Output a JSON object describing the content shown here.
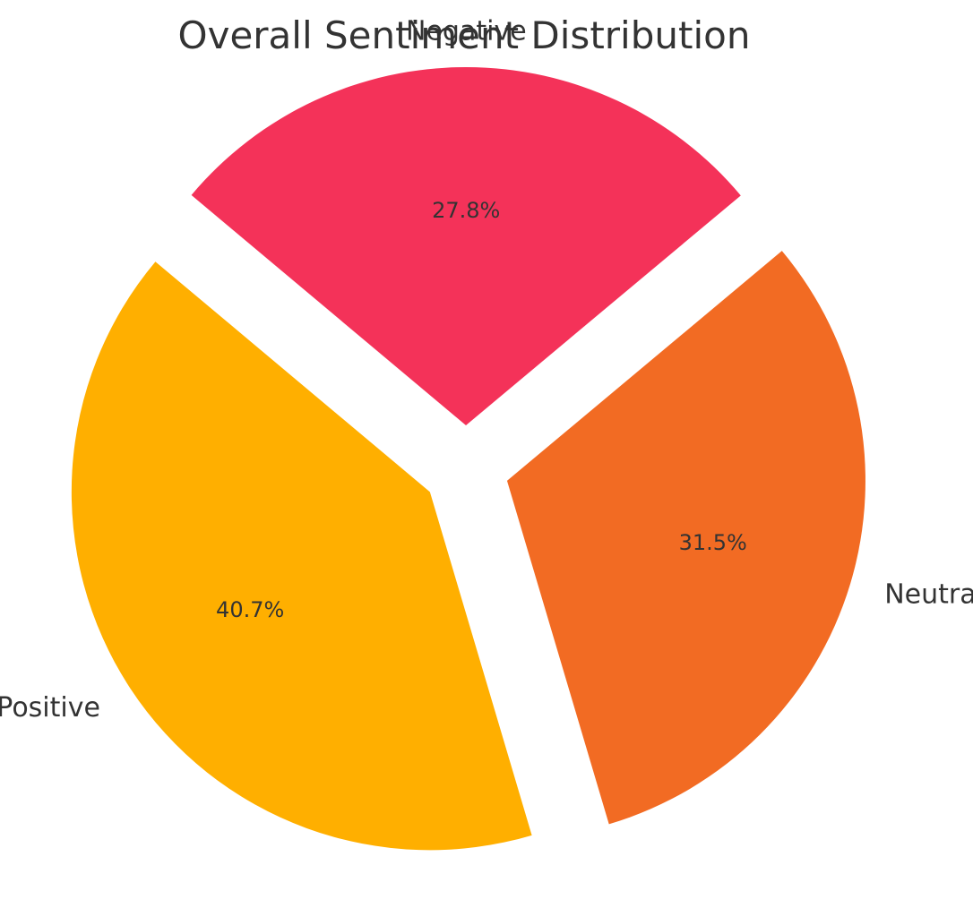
{
  "chart_data": {
    "type": "pie",
    "title": "Overall Sentiment Distribution",
    "slices": [
      {
        "label": "Positive",
        "value": 40.7,
        "pct_label": "40.7%",
        "color": "#FFAF00",
        "exploded": true
      },
      {
        "label": "Neutral",
        "value": 31.5,
        "pct_label": "31.5%",
        "color": "#F26B23",
        "exploded": true
      },
      {
        "label": "Negative",
        "value": 27.8,
        "pct_label": "27.8%",
        "color": "#F43259",
        "exploded": true
      }
    ],
    "legend": "none"
  }
}
